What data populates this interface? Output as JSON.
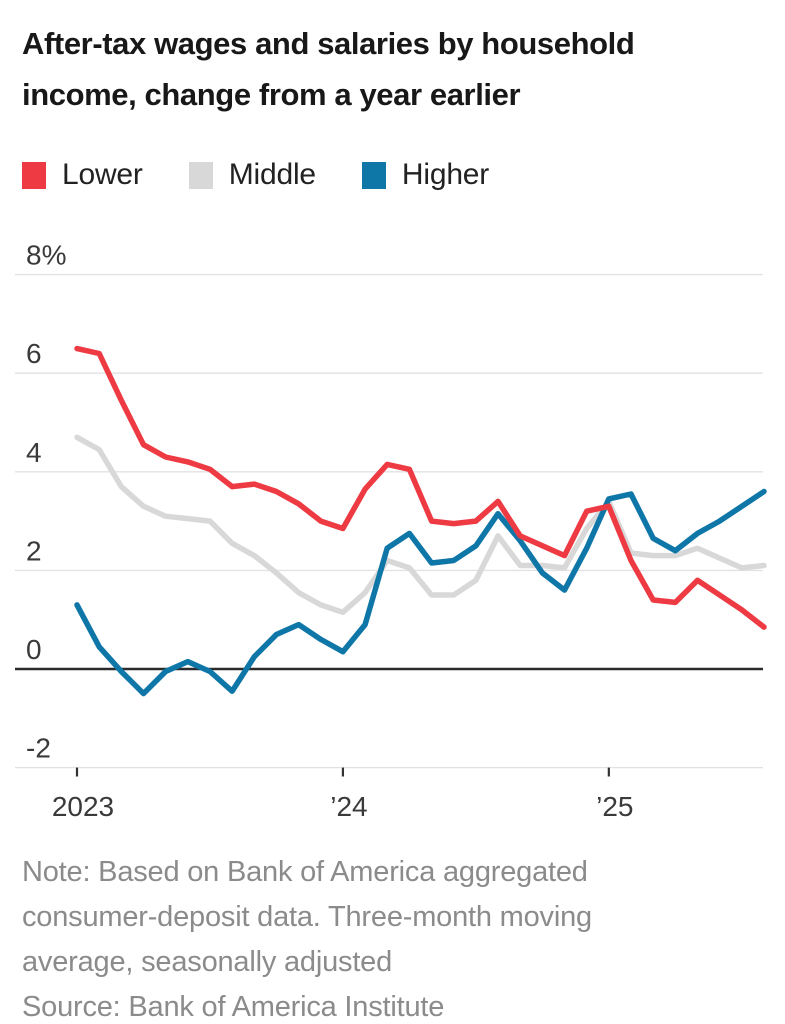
{
  "title": {
    "lines": [
      "After-tax wages and salaries by household",
      "income, change from a year earlier"
    ]
  },
  "chart_data": {
    "type": "line",
    "x": [
      "2023-01",
      "2023-02",
      "2023-03",
      "2023-04",
      "2023-05",
      "2023-06",
      "2023-07",
      "2023-08",
      "2023-09",
      "2023-10",
      "2023-11",
      "2023-12",
      "2024-01",
      "2024-02",
      "2024-03",
      "2024-04",
      "2024-05",
      "2024-06",
      "2024-07",
      "2024-08",
      "2024-09",
      "2024-10",
      "2024-11",
      "2024-12",
      "2025-01",
      "2025-02",
      "2025-03",
      "2025-04",
      "2025-05",
      "2025-06",
      "2025-07",
      "2025-08"
    ],
    "series": [
      {
        "name": "Lower",
        "color": "#ee3b43",
        "values": [
          6.5,
          6.4,
          5.45,
          4.55,
          4.3,
          4.2,
          4.05,
          3.7,
          3.75,
          3.6,
          3.35,
          3.0,
          2.85,
          3.65,
          4.15,
          4.05,
          3.0,
          2.95,
          3.0,
          3.4,
          2.7,
          2.5,
          2.3,
          3.2,
          3.3,
          2.2,
          1.4,
          1.35,
          1.8,
          1.5,
          1.2,
          0.85
        ]
      },
      {
        "name": "Middle",
        "color": "#d8d8d8",
        "values": [
          4.7,
          4.45,
          3.7,
          3.3,
          3.1,
          3.05,
          3.0,
          2.55,
          2.3,
          1.95,
          1.55,
          1.3,
          1.15,
          1.55,
          2.2,
          2.05,
          1.5,
          1.5,
          1.8,
          2.7,
          2.1,
          2.1,
          2.05,
          2.85,
          3.4,
          2.35,
          2.3,
          2.3,
          2.45,
          2.25,
          2.05,
          2.1
        ]
      },
      {
        "name": "Higher",
        "color": "#0f76a8",
        "values": [
          1.3,
          0.45,
          -0.05,
          -0.5,
          -0.05,
          0.15,
          -0.05,
          -0.45,
          0.25,
          0.7,
          0.9,
          0.6,
          0.35,
          0.9,
          2.45,
          2.75,
          2.15,
          2.2,
          2.5,
          3.15,
          2.6,
          1.95,
          1.6,
          2.45,
          3.45,
          3.55,
          2.65,
          2.4,
          2.75,
          3.0,
          3.3,
          3.6
        ]
      }
    ],
    "y_ticks": [
      {
        "label": "8%",
        "value": 8
      },
      {
        "label": "6",
        "value": 6
      },
      {
        "label": "4",
        "value": 4
      },
      {
        "label": "2",
        "value": 2
      },
      {
        "label": "0",
        "value": 0
      },
      {
        "label": "-2",
        "value": -2
      }
    ],
    "x_ticks": [
      {
        "label": "2023",
        "index": 0
      },
      {
        "label": "’24",
        "index": 12
      },
      {
        "label": "’25",
        "index": 24
      }
    ],
    "ylim": [
      -2,
      8
    ],
    "grid": "horizontal",
    "legend_position": "top",
    "zero_line": true
  },
  "footer": {
    "note_lines": [
      "Note: Based on Bank of America aggregated",
      "consumer-deposit data. Three-month moving",
      "average, seasonally adjusted"
    ],
    "source": "Source: Bank of America Institute"
  },
  "colors": {
    "lower": "#ee3b43",
    "middle": "#d8d8d8",
    "higher": "#0f76a8",
    "gridline": "#e2e2e2",
    "zero_line": "#2b2b2b",
    "axis_text": "#3a3a3a",
    "footer_text": "#8b8b8b"
  }
}
